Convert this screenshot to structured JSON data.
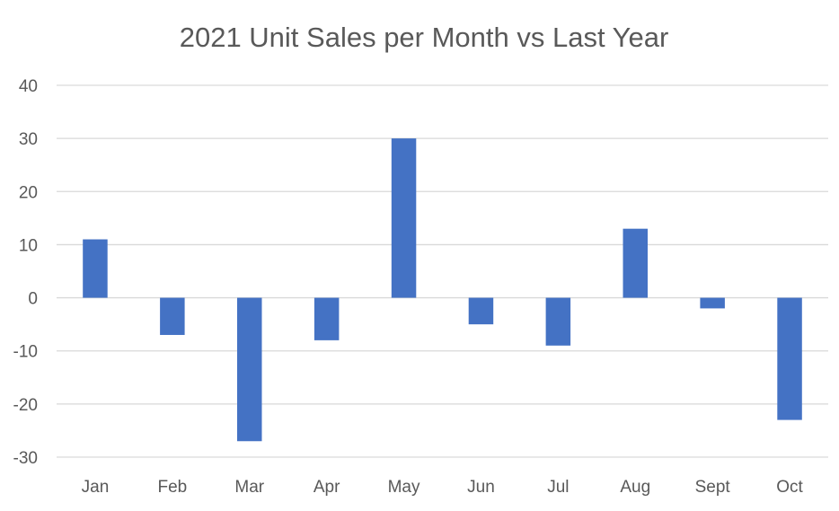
{
  "chart_data": {
    "type": "bar",
    "title": "2021 Unit Sales per Month vs Last Year",
    "xlabel": "",
    "ylabel": "",
    "categories": [
      "Jan",
      "Feb",
      "Mar",
      "Apr",
      "May",
      "Jun",
      "Jul",
      "Aug",
      "Sept",
      "Oct"
    ],
    "series": [
      {
        "values": [
          11,
          -7,
          -27,
          -8,
          30,
          -5,
          -9,
          13,
          -2,
          -23
        ]
      }
    ],
    "ylim": [
      -30,
      40
    ],
    "yticks": [
      40,
      30,
      20,
      10,
      0,
      -10,
      -20,
      -30
    ],
    "ytick_labels": [
      "40",
      "30",
      "20",
      "10",
      "0",
      "-10",
      "-20",
      "-30"
    ],
    "grid": true,
    "legend": "none",
    "colors": {
      "bar": "#4472c4",
      "grid": "#d9d9d9",
      "text": "#595959"
    }
  }
}
